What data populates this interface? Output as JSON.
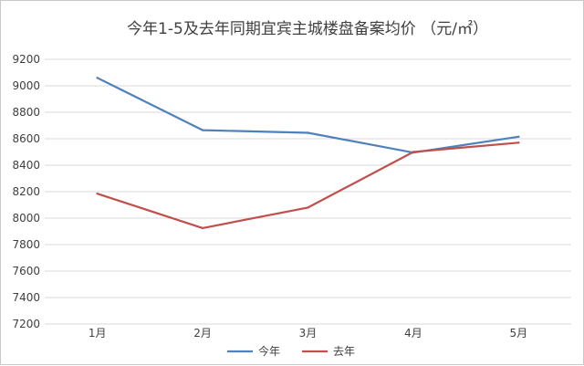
{
  "chart_data": {
    "type": "line",
    "title": "今年1-5及去年同期宜宾主城楼盘备案均价 （元/㎡）",
    "xlabel": "",
    "ylabel": "",
    "categories": [
      "1月",
      "2月",
      "3月",
      "4月",
      "5月"
    ],
    "ylim": [
      7200,
      9200
    ],
    "yticks": [
      7200,
      7400,
      7600,
      7800,
      8000,
      8200,
      8400,
      8600,
      8800,
      9000,
      9200
    ],
    "grid": true,
    "legend_position": "bottom",
    "series": [
      {
        "name": "今年",
        "color": "#4f81bd",
        "values": [
          9060,
          8665,
          8645,
          8495,
          8615
        ]
      },
      {
        "name": "去年",
        "color": "#c0504d",
        "values": [
          8185,
          7925,
          8080,
          8500,
          8570
        ]
      }
    ]
  }
}
